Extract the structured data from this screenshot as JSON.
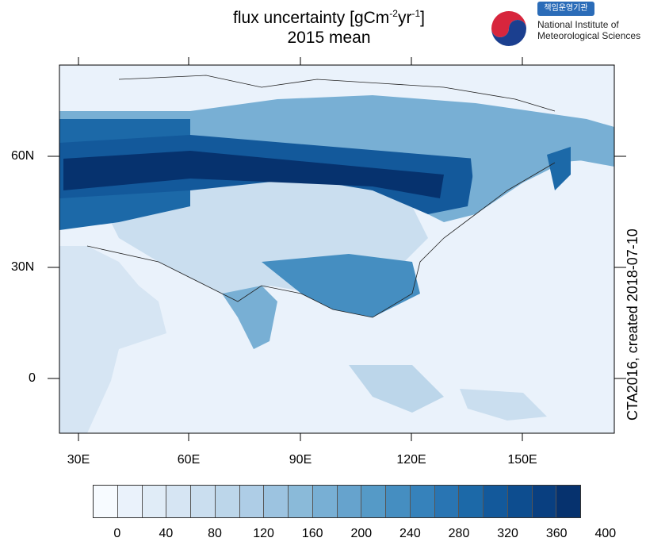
{
  "header": {
    "title_line1": "flux uncertainty [gCm",
    "title_sup1": "-2",
    "title_mid": "yr",
    "title_sup2": "-1",
    "title_end": "]",
    "title_line2": "2015 mean"
  },
  "institute": {
    "badge_text": "책임운영기관",
    "name_line1": "National Institute of",
    "name_line2": "Meteorological Sciences"
  },
  "side_label": "CTA2016, created 2018-07-10",
  "axes": {
    "x_ticks": [
      "30E",
      "60E",
      "90E",
      "120E",
      "150E"
    ],
    "y_ticks": [
      "60N",
      "30N",
      "0"
    ]
  },
  "colorbar": {
    "colors": [
      "#f7fbff",
      "#eaf2fb",
      "#e0ecf7",
      "#d6e5f3",
      "#cadeef",
      "#bcd6ea",
      "#aecde6",
      "#9cc3e0",
      "#8abad9",
      "#78afd4",
      "#66a3cd",
      "#559ac7",
      "#458ec1",
      "#3682bb",
      "#2975b3",
      "#1c69a8",
      "#13599b",
      "#0d4d8f",
      "#093f80",
      "#06326e"
    ],
    "labels": [
      "0",
      "40",
      "80",
      "120",
      "160",
      "200",
      "240",
      "280",
      "320",
      "360",
      "400"
    ]
  }
}
